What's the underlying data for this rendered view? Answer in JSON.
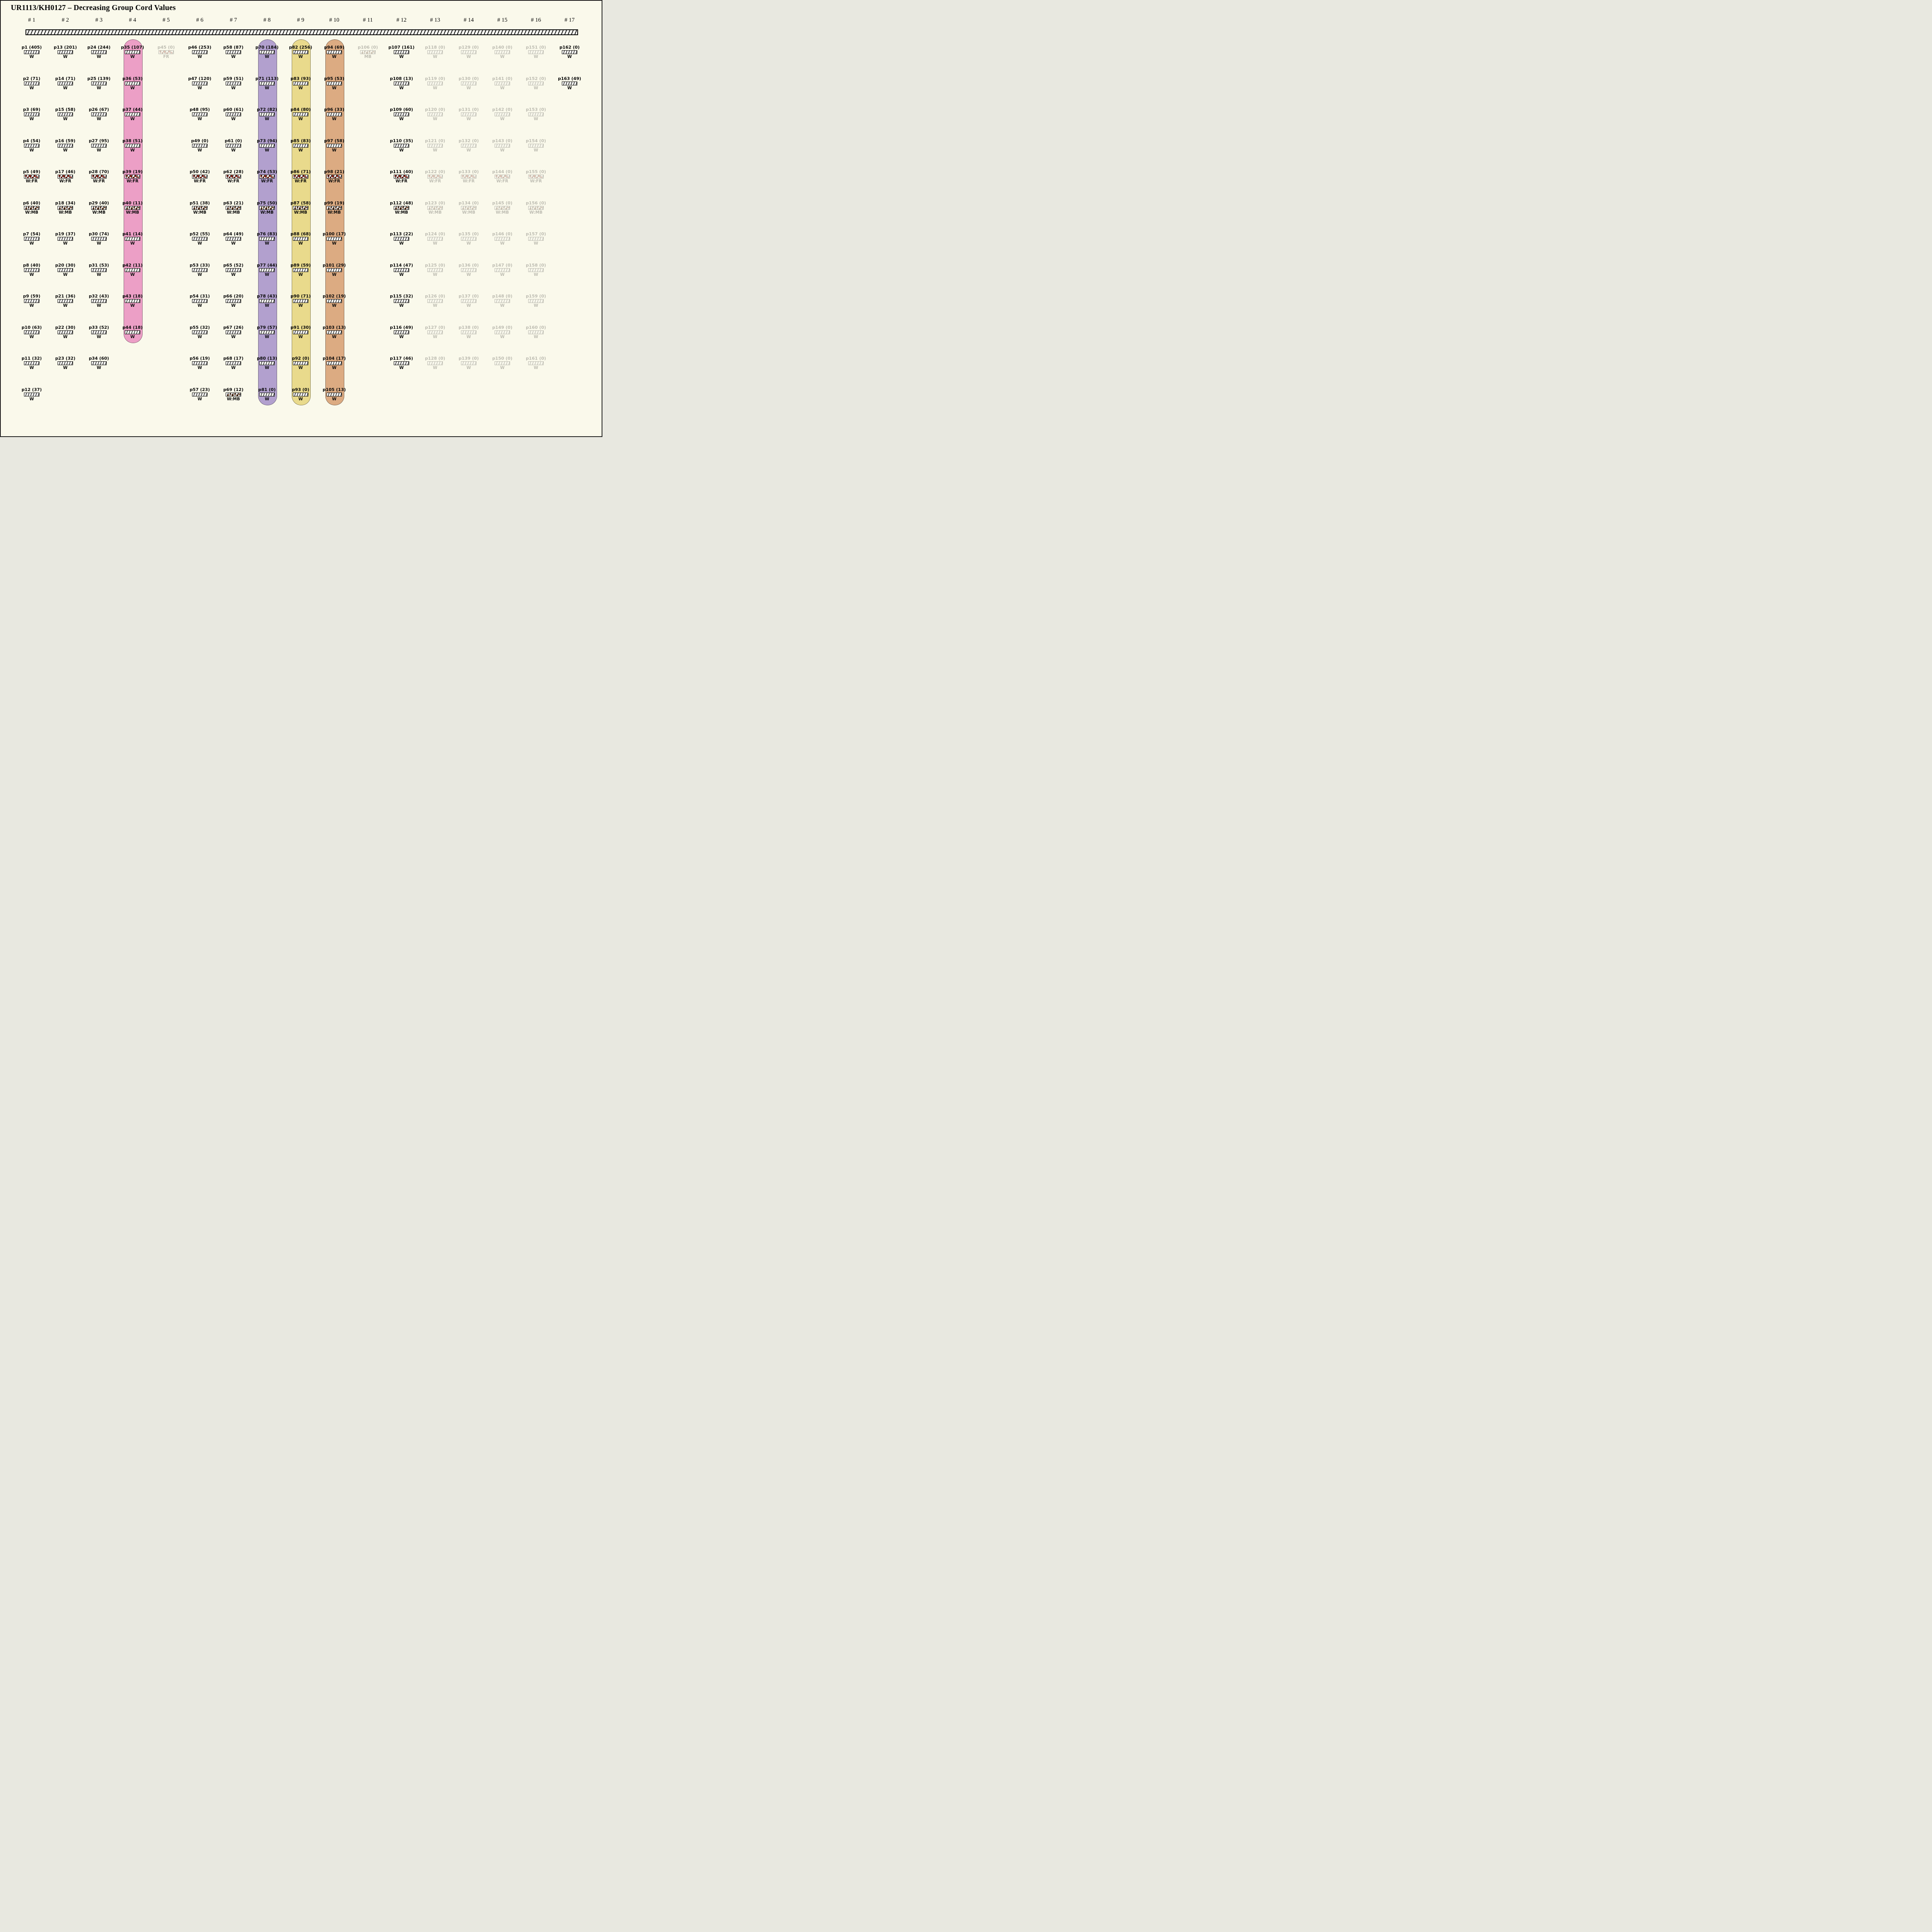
{
  "title": "UR1113/KH0127 – Decreasing Group Cord Values",
  "colors": {
    "background": "#FAF9EB",
    "ink": "#000000",
    "highlight_pink": "#EC9FC6",
    "highlight_purple": "#B2A0CE",
    "highlight_yellow": "#E9DA8C",
    "highlight_orange": "#DCAB82",
    "fr_spot": "#8B2012",
    "mb_spot": "#6E4123",
    "bar_fill": "#F3F3F1"
  },
  "columns": [
    {
      "header": "# 1",
      "highlight": null,
      "items": [
        {
          "label": "p1 (405)",
          "tag": "W"
        },
        {
          "label": "p2 (71)",
          "tag": "W"
        },
        {
          "label": "p3 (69)",
          "tag": "W"
        },
        {
          "label": "p4 (54)",
          "tag": "W"
        },
        {
          "label": "p5 (49)",
          "tag": "W:FR"
        },
        {
          "label": "p6 (40)",
          "tag": "W:MB"
        },
        {
          "label": "p7 (54)",
          "tag": "W"
        },
        {
          "label": "p8 (40)",
          "tag": "W"
        },
        {
          "label": "p9 (59)",
          "tag": "W"
        },
        {
          "label": "p10 (63)",
          "tag": "W"
        },
        {
          "label": "p11 (32)",
          "tag": "W"
        },
        {
          "label": "p12 (37)",
          "tag": "W"
        }
      ]
    },
    {
      "header": "# 2",
      "highlight": null,
      "items": [
        {
          "label": "p13 (201)",
          "tag": "W"
        },
        {
          "label": "p14 (71)",
          "tag": "W"
        },
        {
          "label": "p15 (58)",
          "tag": "W"
        },
        {
          "label": "p16 (59)",
          "tag": "W"
        },
        {
          "label": "p17 (46)",
          "tag": "W:FR"
        },
        {
          "label": "p18 (34)",
          "tag": "W:MB"
        },
        {
          "label": "p19 (37)",
          "tag": "W"
        },
        {
          "label": "p20 (30)",
          "tag": "W"
        },
        {
          "label": "p21 (36)",
          "tag": "W"
        },
        {
          "label": "p22 (30)",
          "tag": "W"
        },
        {
          "label": "p23 (32)",
          "tag": "W"
        }
      ]
    },
    {
      "header": "# 3",
      "highlight": null,
      "items": [
        {
          "label": "p24 (244)",
          "tag": "W"
        },
        {
          "label": "p25 (139)",
          "tag": "W"
        },
        {
          "label": "p26 (67)",
          "tag": "W"
        },
        {
          "label": "p27 (95)",
          "tag": "W"
        },
        {
          "label": "p28 (70)",
          "tag": "W:FR"
        },
        {
          "label": "p29 (40)",
          "tag": "W:MB"
        },
        {
          "label": "p30 (74)",
          "tag": "W"
        },
        {
          "label": "p31 (53)",
          "tag": "W"
        },
        {
          "label": "p32 (43)",
          "tag": "W"
        },
        {
          "label": "p33 (52)",
          "tag": "W"
        },
        {
          "label": "p34 (60)",
          "tag": "W"
        }
      ]
    },
    {
      "header": "# 4",
      "highlight": "#EC9FC6",
      "items": [
        {
          "label": "p35 (107)",
          "tag": "W"
        },
        {
          "label": "p36 (53)",
          "tag": "W"
        },
        {
          "label": "p37 (44)",
          "tag": "W"
        },
        {
          "label": "p38 (51)",
          "tag": "W"
        },
        {
          "label": "p39 (19)",
          "tag": "W:FR"
        },
        {
          "label": "p40 (11)",
          "tag": "W:MB"
        },
        {
          "label": "p41 (14)",
          "tag": "W"
        },
        {
          "label": "p42 (11)",
          "tag": "W"
        },
        {
          "label": "p43 (18)",
          "tag": "W"
        },
        {
          "label": "p44 (18)",
          "tag": "W"
        }
      ]
    },
    {
      "header": "# 5",
      "highlight": null,
      "faded": true,
      "items": [
        {
          "label": "p45 (0)",
          "tag": "FR"
        }
      ]
    },
    {
      "header": "# 6",
      "highlight": null,
      "items": [
        {
          "label": "p46 (253)",
          "tag": "W"
        },
        {
          "label": "p47 (120)",
          "tag": "W"
        },
        {
          "label": "p48 (95)",
          "tag": "W"
        },
        {
          "label": "p49 (0)",
          "tag": "W"
        },
        {
          "label": "p50 (42)",
          "tag": "W:FR"
        },
        {
          "label": "p51 (38)",
          "tag": "W:MB"
        },
        {
          "label": "p52 (55)",
          "tag": "W"
        },
        {
          "label": "p53 (33)",
          "tag": "W"
        },
        {
          "label": "p54 (31)",
          "tag": "W"
        },
        {
          "label": "p55 (32)",
          "tag": "W"
        },
        {
          "label": "p56 (19)",
          "tag": "W"
        },
        {
          "label": "p57 (23)",
          "tag": "W"
        }
      ]
    },
    {
      "header": "# 7",
      "highlight": null,
      "items": [
        {
          "label": "p58 (87)",
          "tag": "W"
        },
        {
          "label": "p59 (51)",
          "tag": "W"
        },
        {
          "label": "p60 (61)",
          "tag": "W"
        },
        {
          "label": "p61 (0)",
          "tag": "W"
        },
        {
          "label": "p62 (28)",
          "tag": "W:FR"
        },
        {
          "label": "p63 (21)",
          "tag": "W:MB"
        },
        {
          "label": "p64 (49)",
          "tag": "W"
        },
        {
          "label": "p65 (52)",
          "tag": "W"
        },
        {
          "label": "p66 (20)",
          "tag": "W"
        },
        {
          "label": "p67 (26)",
          "tag": "W"
        },
        {
          "label": "p68 (17)",
          "tag": "W"
        },
        {
          "label": "p69 (12)",
          "tag": "W:MB"
        }
      ]
    },
    {
      "header": "# 8",
      "highlight": "#B2A0CE",
      "items": [
        {
          "label": "p70 (184)",
          "tag": "W"
        },
        {
          "label": "p71 (113)",
          "tag": "W"
        },
        {
          "label": "p72 (82)",
          "tag": "W"
        },
        {
          "label": "p73 (94)",
          "tag": "W"
        },
        {
          "label": "p74 (53)",
          "tag": "W:FR"
        },
        {
          "label": "p75 (50)",
          "tag": "W:MB"
        },
        {
          "label": "p76 (83)",
          "tag": "W"
        },
        {
          "label": "p77 (44)",
          "tag": "W"
        },
        {
          "label": "p78 (43)",
          "tag": "W"
        },
        {
          "label": "p79 (57)",
          "tag": "W"
        },
        {
          "label": "p80 (13)",
          "tag": "W"
        },
        {
          "label": "p81 (0)",
          "tag": "W"
        }
      ]
    },
    {
      "header": "# 9",
      "highlight": "#E9DA8C",
      "items": [
        {
          "label": "p82 (256)",
          "tag": "W"
        },
        {
          "label": "p83 (93)",
          "tag": "W"
        },
        {
          "label": "p84 (80)",
          "tag": "W"
        },
        {
          "label": "p85 (83)",
          "tag": "W"
        },
        {
          "label": "p86 (71)",
          "tag": "W:FR"
        },
        {
          "label": "p87 (58)",
          "tag": "W:MB"
        },
        {
          "label": "p88 (68)",
          "tag": "W"
        },
        {
          "label": "p89 (59)",
          "tag": "W"
        },
        {
          "label": "p90 (71)",
          "tag": "W"
        },
        {
          "label": "p91 (30)",
          "tag": "W"
        },
        {
          "label": "p92 (0)",
          "tag": "W"
        },
        {
          "label": "p93 (0)",
          "tag": "W"
        }
      ]
    },
    {
      "header": "# 10",
      "highlight": "#DCAB82",
      "items": [
        {
          "label": "p94 (69)",
          "tag": "W"
        },
        {
          "label": "p95 (53)",
          "tag": "W"
        },
        {
          "label": "p96 (33)",
          "tag": "W"
        },
        {
          "label": "p97 (58)",
          "tag": "W"
        },
        {
          "label": "p98 (21)",
          "tag": "W:FR"
        },
        {
          "label": "p99 (19)",
          "tag": "W:MB"
        },
        {
          "label": "p100 (17)",
          "tag": "W"
        },
        {
          "label": "p101 (29)",
          "tag": "W"
        },
        {
          "label": "p102 (19)",
          "tag": "W"
        },
        {
          "label": "p103 (13)",
          "tag": "W"
        },
        {
          "label": "p104 (17)",
          "tag": "W"
        },
        {
          "label": "p105 (13)",
          "tag": "W"
        }
      ]
    },
    {
      "header": "# 11",
      "highlight": null,
      "faded": true,
      "items": [
        {
          "label": "p106 (0)",
          "tag": "MB"
        }
      ]
    },
    {
      "header": "# 12",
      "highlight": null,
      "items": [
        {
          "label": "p107 (161)",
          "tag": "W"
        },
        {
          "label": "p108 (13)",
          "tag": "W"
        },
        {
          "label": "p109 (60)",
          "tag": "W"
        },
        {
          "label": "p110 (35)",
          "tag": "W"
        },
        {
          "label": "p111 (40)",
          "tag": "W:FR"
        },
        {
          "label": "p112 (48)",
          "tag": "W:MB"
        },
        {
          "label": "p113 (22)",
          "tag": "W"
        },
        {
          "label": "p114 (47)",
          "tag": "W"
        },
        {
          "label": "p115 (32)",
          "tag": "W"
        },
        {
          "label": "p116 (49)",
          "tag": "W"
        },
        {
          "label": "p117 (46)",
          "tag": "W"
        }
      ]
    },
    {
      "header": "# 13",
      "highlight": null,
      "faded": true,
      "items": [
        {
          "label": "p118 (0)",
          "tag": "W"
        },
        {
          "label": "p119 (0)",
          "tag": "W"
        },
        {
          "label": "p120 (0)",
          "tag": "W"
        },
        {
          "label": "p121 (0)",
          "tag": "W"
        },
        {
          "label": "p122 (0)",
          "tag": "W:FR"
        },
        {
          "label": "p123 (0)",
          "tag": "W:MB"
        },
        {
          "label": "p124 (0)",
          "tag": "W"
        },
        {
          "label": "p125 (0)",
          "tag": "W"
        },
        {
          "label": "p126 (0)",
          "tag": "W"
        },
        {
          "label": "p127 (0)",
          "tag": "W"
        },
        {
          "label": "p128 (0)",
          "tag": "W"
        }
      ]
    },
    {
      "header": "# 14",
      "highlight": null,
      "faded": true,
      "items": [
        {
          "label": "p129 (0)",
          "tag": "W"
        },
        {
          "label": "p130 (0)",
          "tag": "W"
        },
        {
          "label": "p131 (0)",
          "tag": "W"
        },
        {
          "label": "p132 (0)",
          "tag": "W"
        },
        {
          "label": "p133 (0)",
          "tag": "W:FR"
        },
        {
          "label": "p134 (0)",
          "tag": "W:MB"
        },
        {
          "label": "p135 (0)",
          "tag": "W"
        },
        {
          "label": "p136 (0)",
          "tag": "W"
        },
        {
          "label": "p137 (0)",
          "tag": "W"
        },
        {
          "label": "p138 (0)",
          "tag": "W"
        },
        {
          "label": "p139 (0)",
          "tag": "W"
        }
      ]
    },
    {
      "header": "# 15",
      "highlight": null,
      "faded": true,
      "items": [
        {
          "label": "p140 (0)",
          "tag": "W"
        },
        {
          "label": "p141 (0)",
          "tag": "W"
        },
        {
          "label": "p142 (0)",
          "tag": "W"
        },
        {
          "label": "p143 (0)",
          "tag": "W"
        },
        {
          "label": "p144 (0)",
          "tag": "W:FR"
        },
        {
          "label": "p145 (0)",
          "tag": "W:MB"
        },
        {
          "label": "p146 (0)",
          "tag": "W"
        },
        {
          "label": "p147 (0)",
          "tag": "W"
        },
        {
          "label": "p148 (0)",
          "tag": "W"
        },
        {
          "label": "p149 (0)",
          "tag": "W"
        },
        {
          "label": "p150 (0)",
          "tag": "W"
        }
      ]
    },
    {
      "header": "# 16",
      "highlight": null,
      "faded": true,
      "items": [
        {
          "label": "p151 (0)",
          "tag": "W"
        },
        {
          "label": "p152 (0)",
          "tag": "W"
        },
        {
          "label": "p153 (0)",
          "tag": "W"
        },
        {
          "label": "p154 (0)",
          "tag": "W"
        },
        {
          "label": "p155 (0)",
          "tag": "W:FR"
        },
        {
          "label": "p156 (0)",
          "tag": "W:MB"
        },
        {
          "label": "p157 (0)",
          "tag": "W"
        },
        {
          "label": "p158 (0)",
          "tag": "W"
        },
        {
          "label": "p159 (0)",
          "tag": "W"
        },
        {
          "label": "p160 (0)",
          "tag": "W"
        },
        {
          "label": "p161 (0)",
          "tag": "W"
        }
      ]
    },
    {
      "header": "# 17",
      "highlight": null,
      "items": [
        {
          "label": "p162 (0)",
          "tag": "W"
        },
        {
          "label": "p163 (49)",
          "tag": "W"
        }
      ]
    }
  ]
}
